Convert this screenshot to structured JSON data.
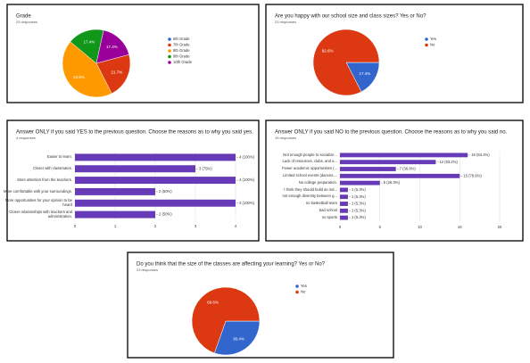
{
  "chart_data": [
    {
      "type": "pie",
      "title": "Grade",
      "subtitle": "23 responses",
      "categories": [
        "6th Grade",
        "7th Grade",
        "8th Grade",
        "9th Grade",
        "10th Grade"
      ],
      "values": [
        0,
        21.7,
        43.5,
        17.4,
        17.4
      ],
      "value_labels": [
        null,
        "21.7%",
        "43.5%",
        "17.4%",
        "17.4%"
      ],
      "colors": [
        "#3366cc",
        "#dc3912",
        "#ff9900",
        "#109618",
        "#990099"
      ]
    },
    {
      "type": "pie",
      "title": "Are you happy with our school size and class sizes? Yes or No?",
      "subtitle": "23 responses",
      "categories": [
        "Yes",
        "No"
      ],
      "values": [
        17.4,
        82.6
      ],
      "value_labels": [
        "17.4%",
        "82.6%"
      ],
      "colors": [
        "#3366cc",
        "#dc3912"
      ]
    },
    {
      "type": "bar",
      "title": "Answer ONLY if you said YES to the previous question. Choose the reasons as to why you said yes.",
      "subtitle": "4 responses",
      "categories": [
        "Easier to learn.",
        "Closer with classmates.",
        "More attention from the teachers.",
        "More comfortable with your surroundings.",
        "More opportunities for your opinion to be heard",
        "Closer relationships with teachers and administration."
      ],
      "values": [
        4,
        3,
        4,
        2,
        4,
        2
      ],
      "value_labels": [
        "4 (100%)",
        "3 (75%)",
        "4 (100%)",
        "2 (50%)",
        "4 (100%)",
        "2 (50%)"
      ],
      "color": "#673ab7",
      "xlim": [
        0,
        4
      ],
      "xticks": [
        0,
        1,
        2,
        3,
        4
      ],
      "grid": true
    },
    {
      "type": "bar",
      "title": "Answer ONLY if you said NO to the previous question. Choose the reasons as to why you said no.",
      "subtitle": "19 responses",
      "categories": [
        "Not enough people to socialize...",
        "Lack of resources, clubs, and a...",
        "Fewer academic opportunities (...",
        "Limited school events (dances,...",
        "No college preparation.",
        "I think they should build an ind...",
        "not enough diversity between g...",
        "no basketball team",
        "bad school",
        "no sports"
      ],
      "values": [
        16,
        12,
        7,
        15,
        5,
        1,
        1,
        1,
        1,
        1
      ],
      "value_labels": [
        "16 (84.2%)",
        "12 (63.2%)",
        "7 (36.8%)",
        "15 (78.9%)",
        "5 (26.3%)",
        "1 (5.3%)",
        "1 (5.3%)",
        "1 (5.3%)",
        "1 (5.3%)",
        "1 (5.3%)"
      ],
      "color": "#673ab7",
      "xlim": [
        0,
        20
      ],
      "xticks": [
        0,
        5,
        10,
        15,
        20
      ],
      "grid": true
    },
    {
      "type": "pie",
      "title": "Do you think that the size of the classes are affecting your learning? Yes or No?",
      "subtitle": "23 responses",
      "categories": [
        "Yes",
        "No"
      ],
      "values": [
        30.4,
        69.6
      ],
      "value_labels": [
        "30.4%",
        "69.6%"
      ],
      "colors": [
        "#3366cc",
        "#dc3912"
      ]
    }
  ]
}
